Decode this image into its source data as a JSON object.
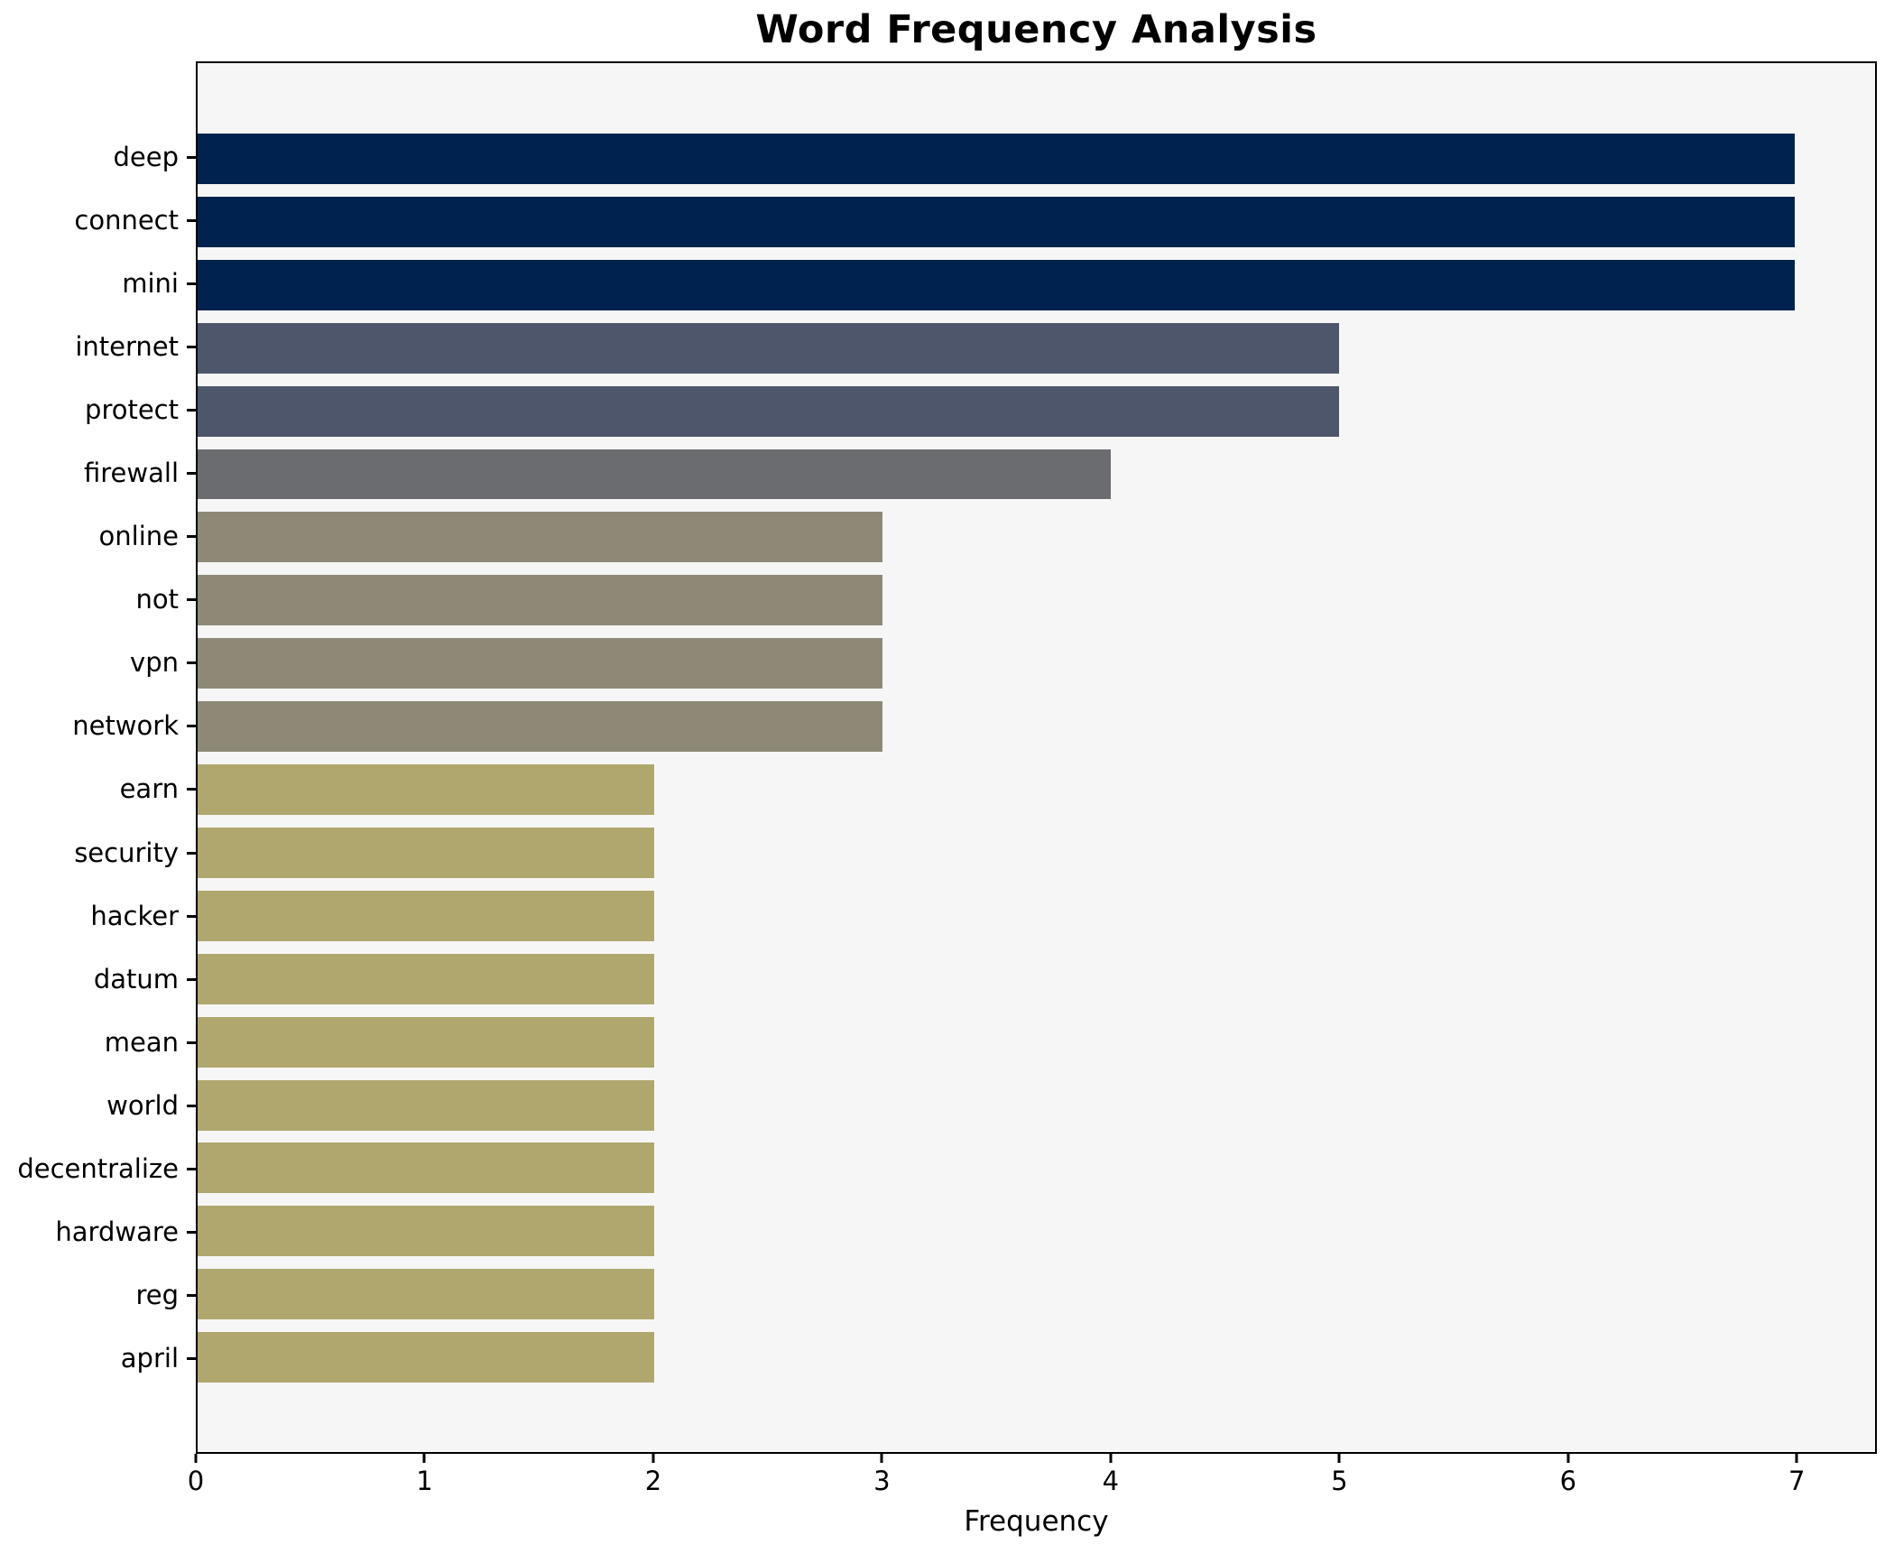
{
  "chart_data": {
    "type": "bar",
    "orientation": "horizontal",
    "title": "Word Frequency Analysis",
    "xlabel": "Frequency",
    "ylabel": "",
    "categories": [
      "deep",
      "connect",
      "mini",
      "internet",
      "protect",
      "firewall",
      "online",
      "not",
      "vpn",
      "network",
      "earn",
      "security",
      "hacker",
      "datum",
      "mean",
      "world",
      "decentralize",
      "hardware",
      "reg",
      "april"
    ],
    "values": [
      7,
      7,
      7,
      5,
      5,
      4,
      3,
      3,
      3,
      3,
      2,
      2,
      2,
      2,
      2,
      2,
      2,
      2,
      2,
      2
    ],
    "bar_colors": [
      "#00224e",
      "#00224e",
      "#00224e",
      "#4d566b",
      "#4d566b",
      "#6a6c70",
      "#8e8977",
      "#8e8977",
      "#8e8977",
      "#8e8977",
      "#b0a76e",
      "#b0a76e",
      "#b0a76e",
      "#b0a76e",
      "#b0a76e",
      "#b0a76e",
      "#b0a76e",
      "#b0a76e",
      "#b0a76e",
      "#b0a76e"
    ],
    "x_ticks": [
      0,
      1,
      2,
      3,
      4,
      5,
      6,
      7
    ],
    "xlim": [
      0,
      7.35
    ],
    "grid": false,
    "legend": "none",
    "plot_background": "#f6f6f6",
    "spine_color": "#000000",
    "color_meaning": "bar color encodes frequency band: 7=#00224e, 5=#4d566b, 4=#6a6c70, 3=#8e8977, 2=#b0a76e"
  }
}
